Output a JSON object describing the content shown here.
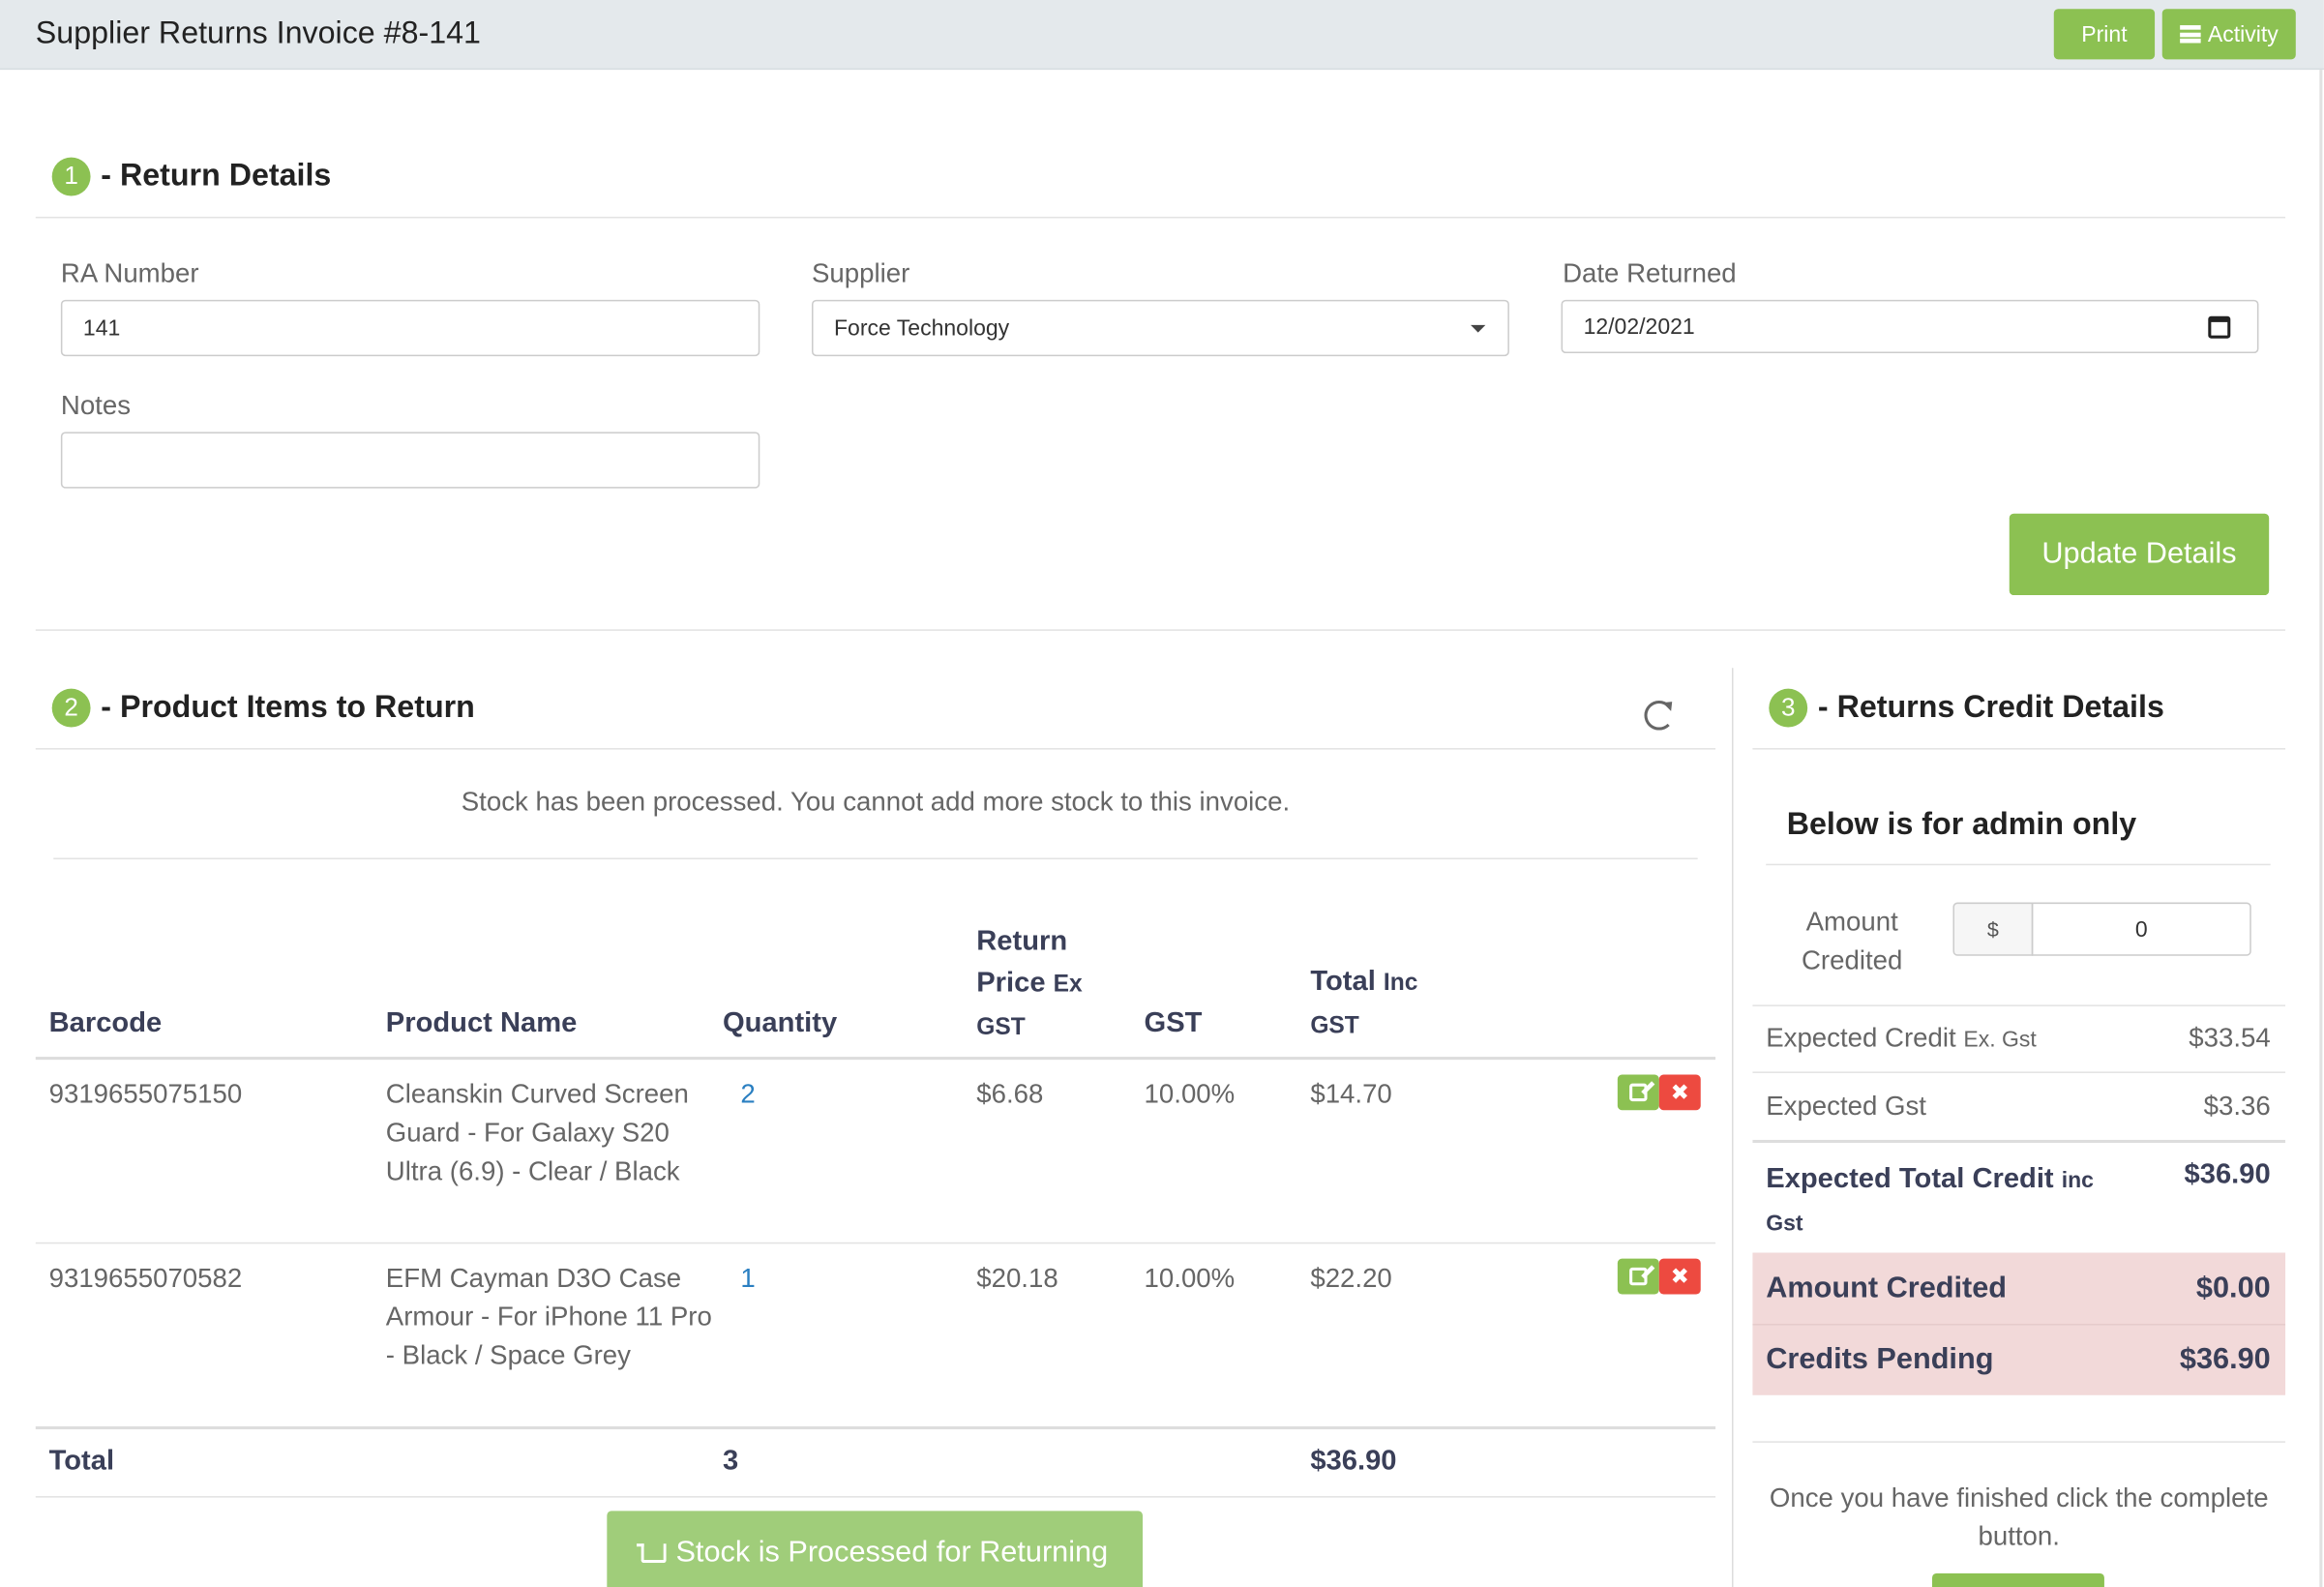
{
  "header": {
    "title": "Supplier Returns Invoice #8-141",
    "print_label": "Print",
    "activity_label": "Activity"
  },
  "section1": {
    "number": "1",
    "title": "- Return Details",
    "ra_label": "RA Number",
    "ra_value": "141",
    "supplier_label": "Supplier",
    "supplier_value": "Force Technology",
    "date_label": "Date Returned",
    "date_value": "12/02/2021",
    "notes_label": "Notes",
    "notes_value": "",
    "update_label": "Update Details"
  },
  "section2": {
    "number": "2",
    "title": "- Product Items to Return",
    "notice": "Stock has been processed. You cannot add more stock to this invoice.",
    "columns": {
      "barcode": "Barcode",
      "product": "Product Name",
      "quantity": "Quantity",
      "return_price_a": "Return",
      "return_price_b": "Price",
      "return_price_c": "Ex",
      "return_price_d": "GST",
      "gst": "GST",
      "total_a": "Total",
      "total_b": "Inc",
      "total_c": "GST"
    },
    "rows": [
      {
        "barcode": "9319655075150",
        "product": "Cleanskin Curved Screen Guard - For Galaxy S20 Ultra (6.9) - Clear / Black",
        "quantity": "2",
        "price": "$6.68",
        "gst": "10.00%",
        "total": "$14.70"
      },
      {
        "barcode": "9319655070582",
        "product": "EFM Cayman D3O Case Armour - For iPhone 11 Pro - Black / Space Grey",
        "quantity": "1",
        "price": "$20.18",
        "gst": "10.00%",
        "total": "$22.20"
      }
    ],
    "total_label": "Total",
    "total_quantity": "3",
    "total_amount": "$36.90",
    "stock_button_label": "Stock is Processed for Returning"
  },
  "section3": {
    "number": "3",
    "title": "- Returns Credit Details",
    "admin_title": "Below is for admin only",
    "amount_label": "Amount Credited",
    "currency": "$",
    "amount_value": "0",
    "expected_credit_label": "Expected Credit",
    "expected_credit_suffix": "Ex. Gst",
    "expected_credit_value": "$33.54",
    "expected_gst_label": "Expected Gst",
    "expected_gst_value": "$3.36",
    "expected_total_label": "Expected Total Credit",
    "expected_total_suffix_a": "inc",
    "expected_total_suffix_b": "Gst",
    "expected_total_value": "$36.90",
    "amount_credited_label": "Amount Credited",
    "amount_credited_value": "$0.00",
    "credits_pending_label": "Credits Pending",
    "credits_pending_value": "$36.90",
    "finish_text": "Once you have finished click the complete button."
  }
}
